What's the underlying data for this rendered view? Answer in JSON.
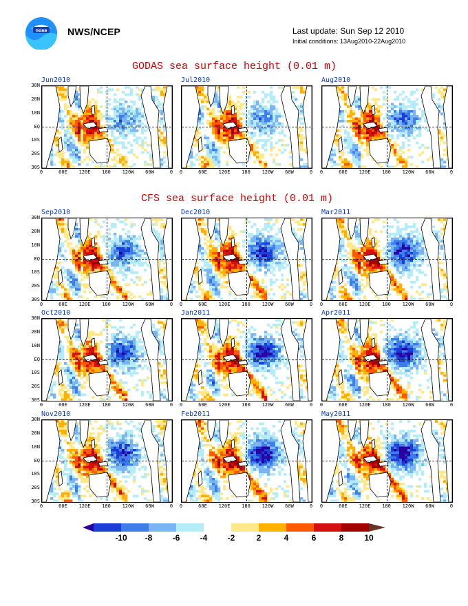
{
  "header": {
    "agency": "NWS/NCEP",
    "last_update": "Last update: Sun Sep 12 2010",
    "initial_conditions": "Initial conditions: 13Aug2010-22Aug2010"
  },
  "sections": {
    "godas_title": "GODAS sea surface height (0.01 m)",
    "cfs_title": "CFS sea surface height (0.01 m)"
  },
  "panels": [
    {
      "label": "Jun2010",
      "group": "GODAS",
      "seed": 11,
      "strength": 0.55
    },
    {
      "label": "Jul2010",
      "group": "GODAS",
      "seed": 12,
      "strength": 0.6
    },
    {
      "label": "Aug2010",
      "group": "GODAS",
      "seed": 13,
      "strength": 0.65
    },
    {
      "label": "Sep2010",
      "group": "CFS",
      "seed": 21,
      "strength": 0.75
    },
    {
      "label": "Dec2010",
      "group": "CFS",
      "seed": 22,
      "strength": 0.85
    },
    {
      "label": "Mar2011",
      "group": "CFS",
      "seed": 23,
      "strength": 0.9
    },
    {
      "label": "Oct2010",
      "group": "CFS",
      "seed": 24,
      "strength": 0.8
    },
    {
      "label": "Jan2011",
      "group": "CFS",
      "seed": 25,
      "strength": 0.95
    },
    {
      "label": "Apr2011",
      "group": "CFS",
      "seed": 26,
      "strength": 0.95
    },
    {
      "label": "Nov2010",
      "group": "CFS",
      "seed": 27,
      "strength": 0.85
    },
    {
      "label": "Feb2011",
      "group": "CFS",
      "seed": 28,
      "strength": 1.0
    },
    {
      "label": "May2011",
      "group": "CFS",
      "seed": 29,
      "strength": 1.0
    }
  ],
  "lat_ticks": [
    "30N",
    "20N",
    "10N",
    "EQ",
    "10S",
    "20S",
    "30S"
  ],
  "lon_ticks": [
    "0",
    "60E",
    "120E",
    "180",
    "120W",
    "60W",
    "0"
  ],
  "colorbar": {
    "labels": [
      "-10",
      "-8",
      "-6",
      "-4",
      "-2",
      "2",
      "4",
      "6",
      "8",
      "10"
    ],
    "colors": [
      "#2a00a0",
      "#1b3fd6",
      "#3d7ee8",
      "#7ab4f2",
      "#b4ecf7",
      "#ffffff",
      "#ffe88a",
      "#ffb000",
      "#ff5a00",
      "#d41010",
      "#a30000",
      "#6b3526"
    ]
  }
}
